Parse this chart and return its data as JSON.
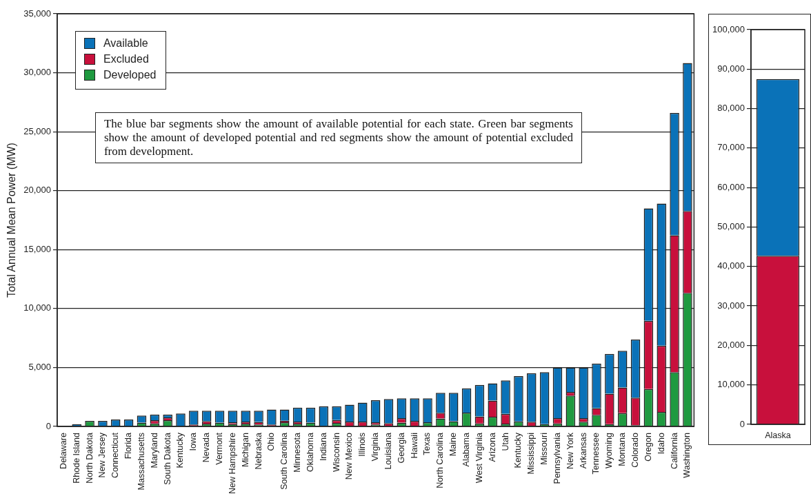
{
  "chart_data": [
    {
      "type": "bar",
      "stacked": true,
      "ylabel": "Total Annual Mean Power (MW)",
      "categories": [
        "Delaware",
        "Rhode Island",
        "North Dakota",
        "New Jersey",
        "Connecticut",
        "Florida",
        "Massachusetts",
        "Maryland",
        "South Dakota",
        "Kentucky",
        "Iowa",
        "Nevada",
        "Vermont",
        "New Hampshire",
        "Michigan",
        "Nebraska",
        "Ohio",
        "South Carolina",
        "Minnesota",
        "Oklahoma",
        "Indiana",
        "Wisconsin",
        "New Mexico",
        "Illinois",
        "Virginia",
        "Louisiana",
        "Georgia",
        "Hawaii",
        "Texas",
        "North Carolina",
        "Maine",
        "Alabama",
        "West Virginia",
        "Arizona",
        "Utah",
        "Kentucky",
        "Mississippi",
        "Missouri",
        "Pennsylvania",
        "New York",
        "Arkansas",
        "Tennessee",
        "Wyoming",
        "Montana",
        "Colorado",
        "Oregon",
        "Idaho",
        "California",
        "Washington"
      ],
      "series": [
        {
          "name": "Developed",
          "color": "#1f9a40",
          "values": [
            0,
            0,
            470,
            0,
            0,
            0,
            320,
            260,
            530,
            0,
            0,
            240,
            320,
            200,
            240,
            160,
            0,
            360,
            240,
            320,
            0,
            300,
            0,
            0,
            160,
            0,
            320,
            0,
            360,
            670,
            450,
            1170,
            260,
            830,
            240,
            430,
            0,
            200,
            260,
            2620,
            400,
            990,
            200,
            1130,
            100,
            3170,
            1230,
            4600,
            11330
          ]
        },
        {
          "name": "Excluded",
          "color": "#c8103c",
          "values": [
            0,
            0,
            0,
            0,
            0,
            0,
            0,
            270,
            240,
            0,
            160,
            220,
            0,
            150,
            180,
            220,
            160,
            120,
            180,
            0,
            0,
            240,
            420,
            420,
            200,
            280,
            380,
            470,
            0,
            490,
            0,
            0,
            590,
            1360,
            830,
            0,
            400,
            0,
            440,
            300,
            300,
            560,
            2580,
            2180,
            2340,
            5790,
            5620,
            11620,
            6940
          ]
        },
        {
          "name": "Available",
          "color": "#0a72b8",
          "values": [
            0,
            200,
            0,
            470,
            590,
            590,
            610,
            480,
            240,
            1100,
            1180,
            880,
            1020,
            990,
            920,
            960,
            1280,
            960,
            1180,
            1280,
            1720,
            1180,
            1420,
            1600,
            1870,
            2050,
            1690,
            1920,
            2030,
            1690,
            2400,
            2070,
            2670,
            1470,
            2840,
            3840,
            4120,
            4400,
            4300,
            2080,
            4300,
            3790,
            3370,
            3100,
            4940,
            9530,
            12050,
            10360,
            12550
          ]
        }
      ],
      "ylim": [
        0,
        35000
      ],
      "yticks": [
        {
          "value": 0,
          "label": "0"
        },
        {
          "value": 5000,
          "label": "5,000"
        },
        {
          "value": 10000,
          "label": "10,000"
        },
        {
          "value": 15000,
          "label": "15,000"
        },
        {
          "value": 20000,
          "label": "20,000"
        },
        {
          "value": 25000,
          "label": "25,000"
        },
        {
          "value": 30000,
          "label": "30,000"
        },
        {
          "value": 35000,
          "label": "35,000"
        }
      ],
      "grid": "y",
      "legend": "top left",
      "annotations": [
        "The blue bar segments show the amount of available potential for each state. Green bar segments show the amount of developed potential and red segments show the amount of potential excluded from development."
      ]
    },
    {
      "type": "bar",
      "stacked": true,
      "categories": [
        "Alaska"
      ],
      "series": [
        {
          "color": "#c8103c",
          "values": [
            42700
          ]
        },
        {
          "color": "#0a72b8",
          "values": [
            44800
          ]
        }
      ],
      "ylim": [
        0,
        100000
      ],
      "yticks": [
        {
          "value": 0,
          "label": "0"
        },
        {
          "value": 10000,
          "label": "10,000"
        },
        {
          "value": 20000,
          "label": "20,000"
        },
        {
          "value": 30000,
          "label": "30,000"
        },
        {
          "value": 40000,
          "label": "40,000"
        },
        {
          "value": 50000,
          "label": "50,000"
        },
        {
          "value": 60000,
          "label": "60,000"
        },
        {
          "value": 70000,
          "label": "70,000"
        },
        {
          "value": 80000,
          "label": "80,000"
        },
        {
          "value": 90000,
          "label": "90,000"
        },
        {
          "value": 100000,
          "label": "100,000"
        }
      ],
      "grid": "y"
    }
  ]
}
